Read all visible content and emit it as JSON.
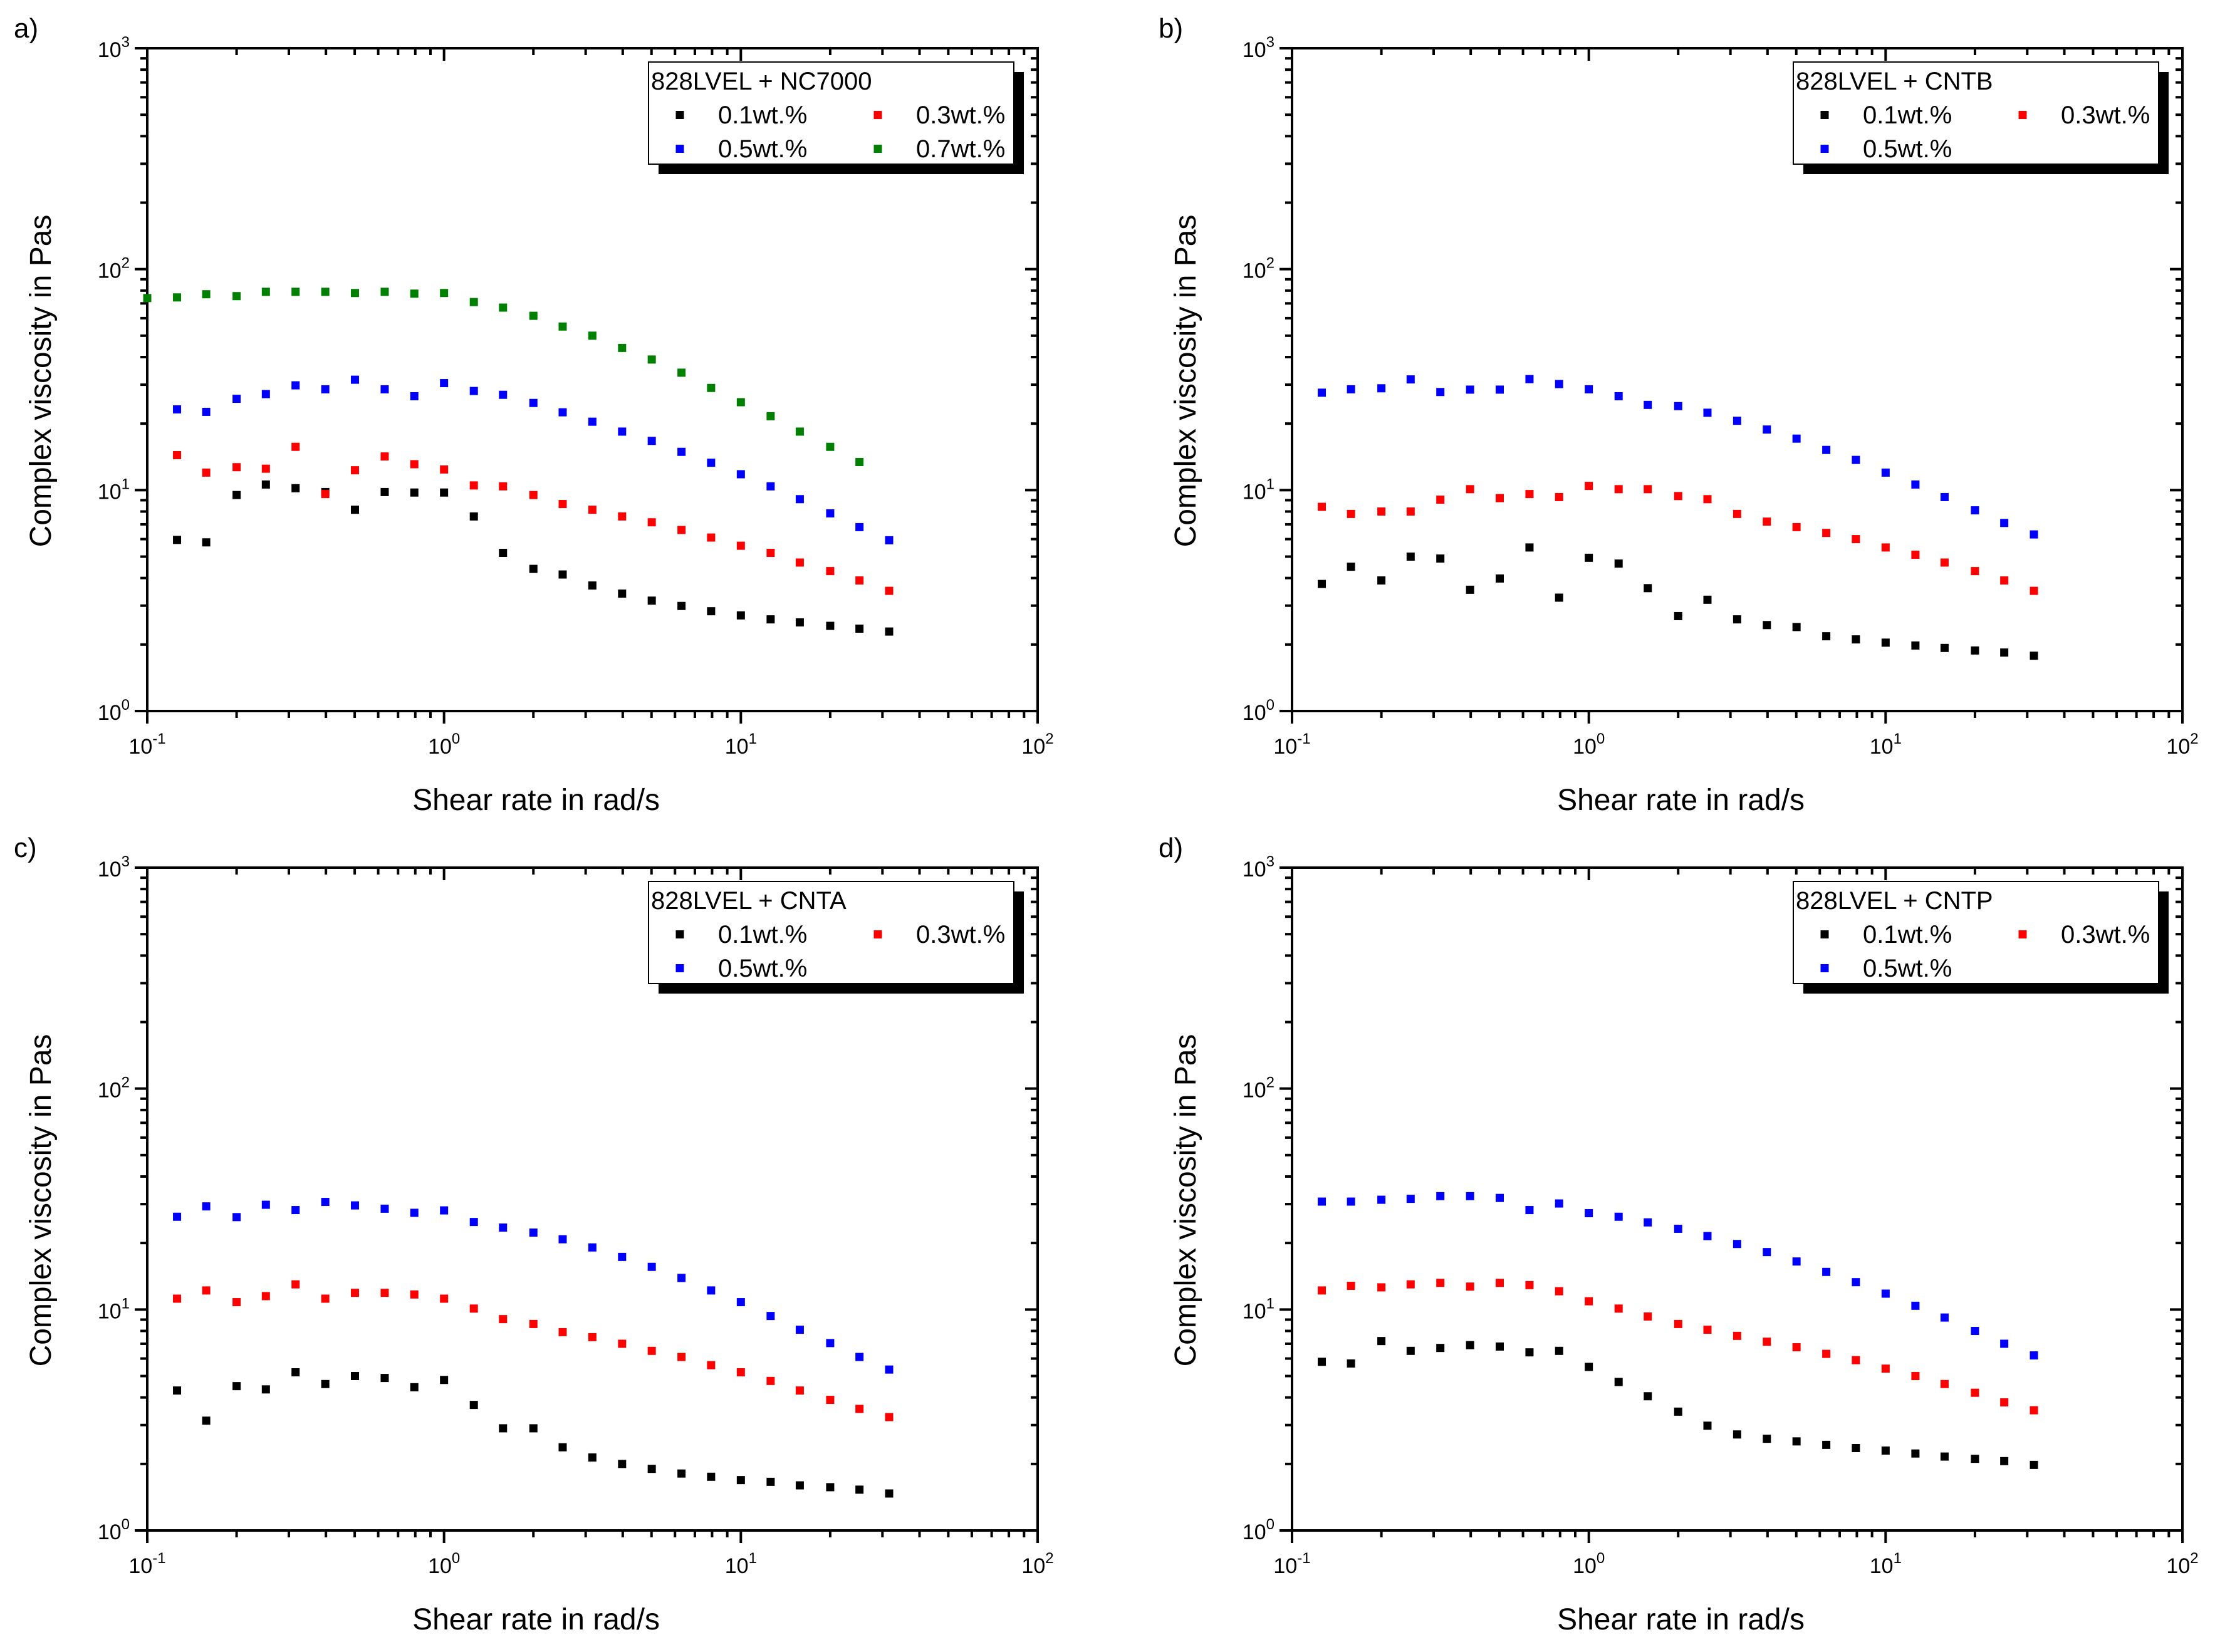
{
  "chart_data": [
    {
      "type": "scatter",
      "panel_label": "a)",
      "xlabel": "Shear rate in rad/s",
      "ylabel": "Complex viscosity in Pas",
      "xscale": "log",
      "yscale": "log",
      "xlim": [
        0.1,
        100
      ],
      "ylim": [
        1,
        1000
      ],
      "x_ticks": [
        {
          "base": "10",
          "exp": "-1"
        },
        {
          "base": "10",
          "exp": "0"
        },
        {
          "base": "10",
          "exp": "1"
        },
        {
          "base": "10",
          "exp": "2"
        }
      ],
      "y_ticks": [
        {
          "base": "10",
          "exp": "0"
        },
        {
          "base": "10",
          "exp": "1"
        },
        {
          "base": "10",
          "exp": "2"
        },
        {
          "base": "10",
          "exp": "3"
        }
      ],
      "legend": {
        "title": "828LVEL + NC7000",
        "position": "top-right"
      },
      "x": [
        0.126,
        0.158,
        0.2,
        0.251,
        0.316,
        0.398,
        0.501,
        0.631,
        0.794,
        1,
        1.26,
        1.58,
        2,
        2.51,
        3.16,
        3.98,
        5.01,
        6.31,
        7.94,
        10,
        12.6,
        15.8,
        20,
        25.1,
        31.6
      ],
      "series": [
        {
          "name": "0.1wt.%",
          "color": "#000000",
          "values": [
            5.95,
            5.8,
            9.5,
            10.6,
            10.2,
            9.8,
            8.15,
            9.8,
            9.75,
            9.75,
            7.6,
            5.2,
            4.4,
            4.15,
            3.7,
            3.4,
            3.16,
            2.99,
            2.83,
            2.71,
            2.6,
            2.52,
            2.43,
            2.36,
            2.29
          ]
        },
        {
          "name": "0.3wt.%",
          "color": "#ff0000",
          "values": [
            14.4,
            12.0,
            12.7,
            12.5,
            15.7,
            9.6,
            12.3,
            14.2,
            13.1,
            12.4,
            10.5,
            10.4,
            9.5,
            8.65,
            8.15,
            7.6,
            7.15,
            6.6,
            6.1,
            5.6,
            5.2,
            4.7,
            4.3,
            3.9,
            3.5
          ]
        },
        {
          "name": "0.5wt.%",
          "color": "#0000ff",
          "values": [
            23.2,
            22.6,
            25.9,
            27.2,
            29.8,
            28.6,
            31.6,
            28.6,
            26.6,
            30.5,
            28.1,
            27.0,
            24.8,
            22.5,
            20.4,
            18.4,
            16.7,
            14.9,
            13.3,
            11.8,
            10.4,
            9.1,
            7.85,
            6.8,
            5.93
          ]
        },
        {
          "name": "0.7wt.%",
          "color": "#008000",
          "x": [
            0.1,
            0.126,
            0.158,
            0.2,
            0.251,
            0.316,
            0.398,
            0.501,
            0.631,
            0.794,
            1,
            1.26,
            1.58,
            2,
            2.51,
            3.16,
            3.98,
            5.01,
            6.31,
            7.94,
            10,
            12.6,
            15.8,
            20,
            25.1
          ],
          "values": [
            74,
            74.5,
            77,
            75.5,
            79,
            79,
            79,
            78,
            79,
            77.5,
            78,
            71,
            67,
            61.5,
            55,
            50,
            44,
            39,
            34,
            29,
            25,
            21.6,
            18.4,
            15.7,
            13.4
          ]
        }
      ]
    },
    {
      "type": "scatter",
      "panel_label": "b)",
      "xlabel": "Shear rate in rad/s",
      "ylabel": "Complex viscosity in Pas",
      "xscale": "log",
      "yscale": "log",
      "xlim": [
        0.1,
        100
      ],
      "ylim": [
        1,
        1000
      ],
      "x_ticks": [
        {
          "base": "10",
          "exp": "-1"
        },
        {
          "base": "10",
          "exp": "0"
        },
        {
          "base": "10",
          "exp": "1"
        },
        {
          "base": "10",
          "exp": "2"
        }
      ],
      "y_ticks": [
        {
          "base": "10",
          "exp": "0"
        },
        {
          "base": "10",
          "exp": "1"
        },
        {
          "base": "10",
          "exp": "2"
        },
        {
          "base": "10",
          "exp": "3"
        }
      ],
      "legend": {
        "title": "828LVEL + CNTB",
        "position": "top-right"
      },
      "x": [
        0.126,
        0.158,
        0.2,
        0.251,
        0.316,
        0.398,
        0.501,
        0.631,
        0.794,
        1,
        1.26,
        1.58,
        2,
        2.51,
        3.16,
        3.98,
        5.01,
        6.31,
        7.94,
        10,
        12.6,
        15.8,
        20,
        25.1,
        31.6
      ],
      "series": [
        {
          "name": "0.1wt.%",
          "color": "#000000",
          "values": [
            3.76,
            4.5,
            3.9,
            5.0,
            4.9,
            3.54,
            3.98,
            5.5,
            3.26,
            4.94,
            4.65,
            3.6,
            2.69,
            3.19,
            2.6,
            2.45,
            2.4,
            2.18,
            2.11,
            2.04,
            1.98,
            1.93,
            1.88,
            1.84,
            1.78
          ]
        },
        {
          "name": "0.3wt.%",
          "color": "#ff0000",
          "values": [
            8.4,
            7.8,
            8.0,
            8.0,
            9.05,
            10.1,
            9.2,
            9.6,
            9.3,
            10.45,
            10.1,
            10.1,
            9.4,
            9.1,
            7.8,
            7.2,
            6.8,
            6.4,
            6.0,
            5.5,
            5.1,
            4.7,
            4.3,
            3.9,
            3.5
          ]
        },
        {
          "name": "0.5wt.%",
          "color": "#0000ff",
          "values": [
            27.6,
            28.6,
            28.9,
            31.7,
            27.8,
            28.5,
            28.5,
            31.8,
            30.2,
            28.6,
            26.6,
            24.3,
            24.0,
            22.4,
            20.6,
            18.8,
            17.1,
            15.2,
            13.7,
            12.0,
            10.6,
            9.3,
            8.1,
            7.1,
            6.3
          ]
        }
      ]
    },
    {
      "type": "scatter",
      "panel_label": "c)",
      "xlabel": "Shear rate in rad/s",
      "ylabel": "Complex viscosity in Pas",
      "xscale": "log",
      "yscale": "log",
      "xlim": [
        0.1,
        100
      ],
      "ylim": [
        1,
        1000
      ],
      "x_ticks": [
        {
          "base": "10",
          "exp": "-1"
        },
        {
          "base": "10",
          "exp": "0"
        },
        {
          "base": "10",
          "exp": "1"
        },
        {
          "base": "10",
          "exp": "2"
        }
      ],
      "y_ticks": [
        {
          "base": "10",
          "exp": "0"
        },
        {
          "base": "10",
          "exp": "1"
        },
        {
          "base": "10",
          "exp": "2"
        },
        {
          "base": "10",
          "exp": "3"
        }
      ],
      "legend": {
        "title": "828LVEL + CNTA",
        "position": "top-right"
      },
      "x": [
        0.126,
        0.158,
        0.2,
        0.251,
        0.316,
        0.398,
        0.501,
        0.631,
        0.794,
        1,
        1.26,
        1.58,
        2,
        2.51,
        3.16,
        3.98,
        5.01,
        6.31,
        7.94,
        10,
        12.6,
        15.8,
        20,
        25.1,
        31.6
      ],
      "series": [
        {
          "name": "0.1wt.%",
          "color": "#000000",
          "values": [
            4.3,
            3.14,
            4.5,
            4.35,
            5.2,
            4.6,
            5.0,
            4.9,
            4.45,
            4.8,
            3.7,
            2.9,
            2.9,
            2.38,
            2.14,
            2.0,
            1.9,
            1.81,
            1.75,
            1.69,
            1.66,
            1.6,
            1.57,
            1.53,
            1.47
          ]
        },
        {
          "name": "0.3wt.%",
          "color": "#ff0000",
          "values": [
            11.2,
            12.2,
            10.8,
            11.5,
            13.0,
            11.2,
            11.9,
            11.9,
            11.7,
            11.2,
            10.1,
            9.05,
            8.6,
            7.9,
            7.5,
            7.0,
            6.5,
            6.1,
            5.6,
            5.2,
            4.75,
            4.3,
            3.9,
            3.55,
            3.26
          ]
        },
        {
          "name": "0.5wt.%",
          "color": "#0000ff",
          "values": [
            26.3,
            29.3,
            26.2,
            29.8,
            28.2,
            30.7,
            29.6,
            28.6,
            27.4,
            28.1,
            24.9,
            23.5,
            22.3,
            20.8,
            19.1,
            17.3,
            15.6,
            13.9,
            12.2,
            10.8,
            9.35,
            8.1,
            7.05,
            6.1,
            5.35
          ]
        }
      ]
    },
    {
      "type": "scatter",
      "panel_label": "d)",
      "xlabel": "Shear rate in rad/s",
      "ylabel": "Complex viscosity in Pas",
      "xscale": "log",
      "yscale": "log",
      "xlim": [
        0.1,
        100
      ],
      "ylim": [
        1,
        1000
      ],
      "x_ticks": [
        {
          "base": "10",
          "exp": "-1"
        },
        {
          "base": "10",
          "exp": "0"
        },
        {
          "base": "10",
          "exp": "1"
        },
        {
          "base": "10",
          "exp": "2"
        }
      ],
      "y_ticks": [
        {
          "base": "10",
          "exp": "0"
        },
        {
          "base": "10",
          "exp": "1"
        },
        {
          "base": "10",
          "exp": "2"
        },
        {
          "base": "10",
          "exp": "3"
        }
      ],
      "legend": {
        "title": "828LVEL + CNTP",
        "position": "top-right"
      },
      "x": [
        0.126,
        0.158,
        0.2,
        0.251,
        0.316,
        0.398,
        0.501,
        0.631,
        0.794,
        1,
        1.26,
        1.58,
        2,
        2.51,
        3.16,
        3.98,
        5.01,
        6.31,
        7.94,
        10,
        12.6,
        15.8,
        20,
        25.1,
        31.6
      ],
      "series": [
        {
          "name": "0.1wt.%",
          "color": "#000000",
          "values": [
            5.8,
            5.7,
            7.2,
            6.5,
            6.7,
            6.9,
            6.8,
            6.4,
            6.5,
            5.5,
            4.7,
            4.05,
            3.45,
            2.98,
            2.72,
            2.6,
            2.53,
            2.44,
            2.36,
            2.3,
            2.23,
            2.16,
            2.11,
            2.06,
            1.98
          ]
        },
        {
          "name": "0.3wt.%",
          "color": "#ff0000",
          "values": [
            12.2,
            12.8,
            12.6,
            13.0,
            13.2,
            12.7,
            13.2,
            12.9,
            12.1,
            10.9,
            10.1,
            9.3,
            8.6,
            8.1,
            7.6,
            7.15,
            6.75,
            6.3,
            5.9,
            5.4,
            5.0,
            4.6,
            4.2,
            3.8,
            3.5
          ]
        },
        {
          "name": "0.5wt.%",
          "color": "#0000ff",
          "values": [
            30.8,
            30.8,
            31.4,
            31.7,
            32.6,
            32.6,
            32.0,
            28.2,
            30.2,
            27.3,
            26.3,
            24.8,
            23.2,
            21.5,
            19.8,
            18.2,
            16.5,
            14.8,
            13.3,
            11.8,
            10.4,
            9.2,
            8.0,
            7.0,
            6.2
          ]
        }
      ]
    }
  ]
}
